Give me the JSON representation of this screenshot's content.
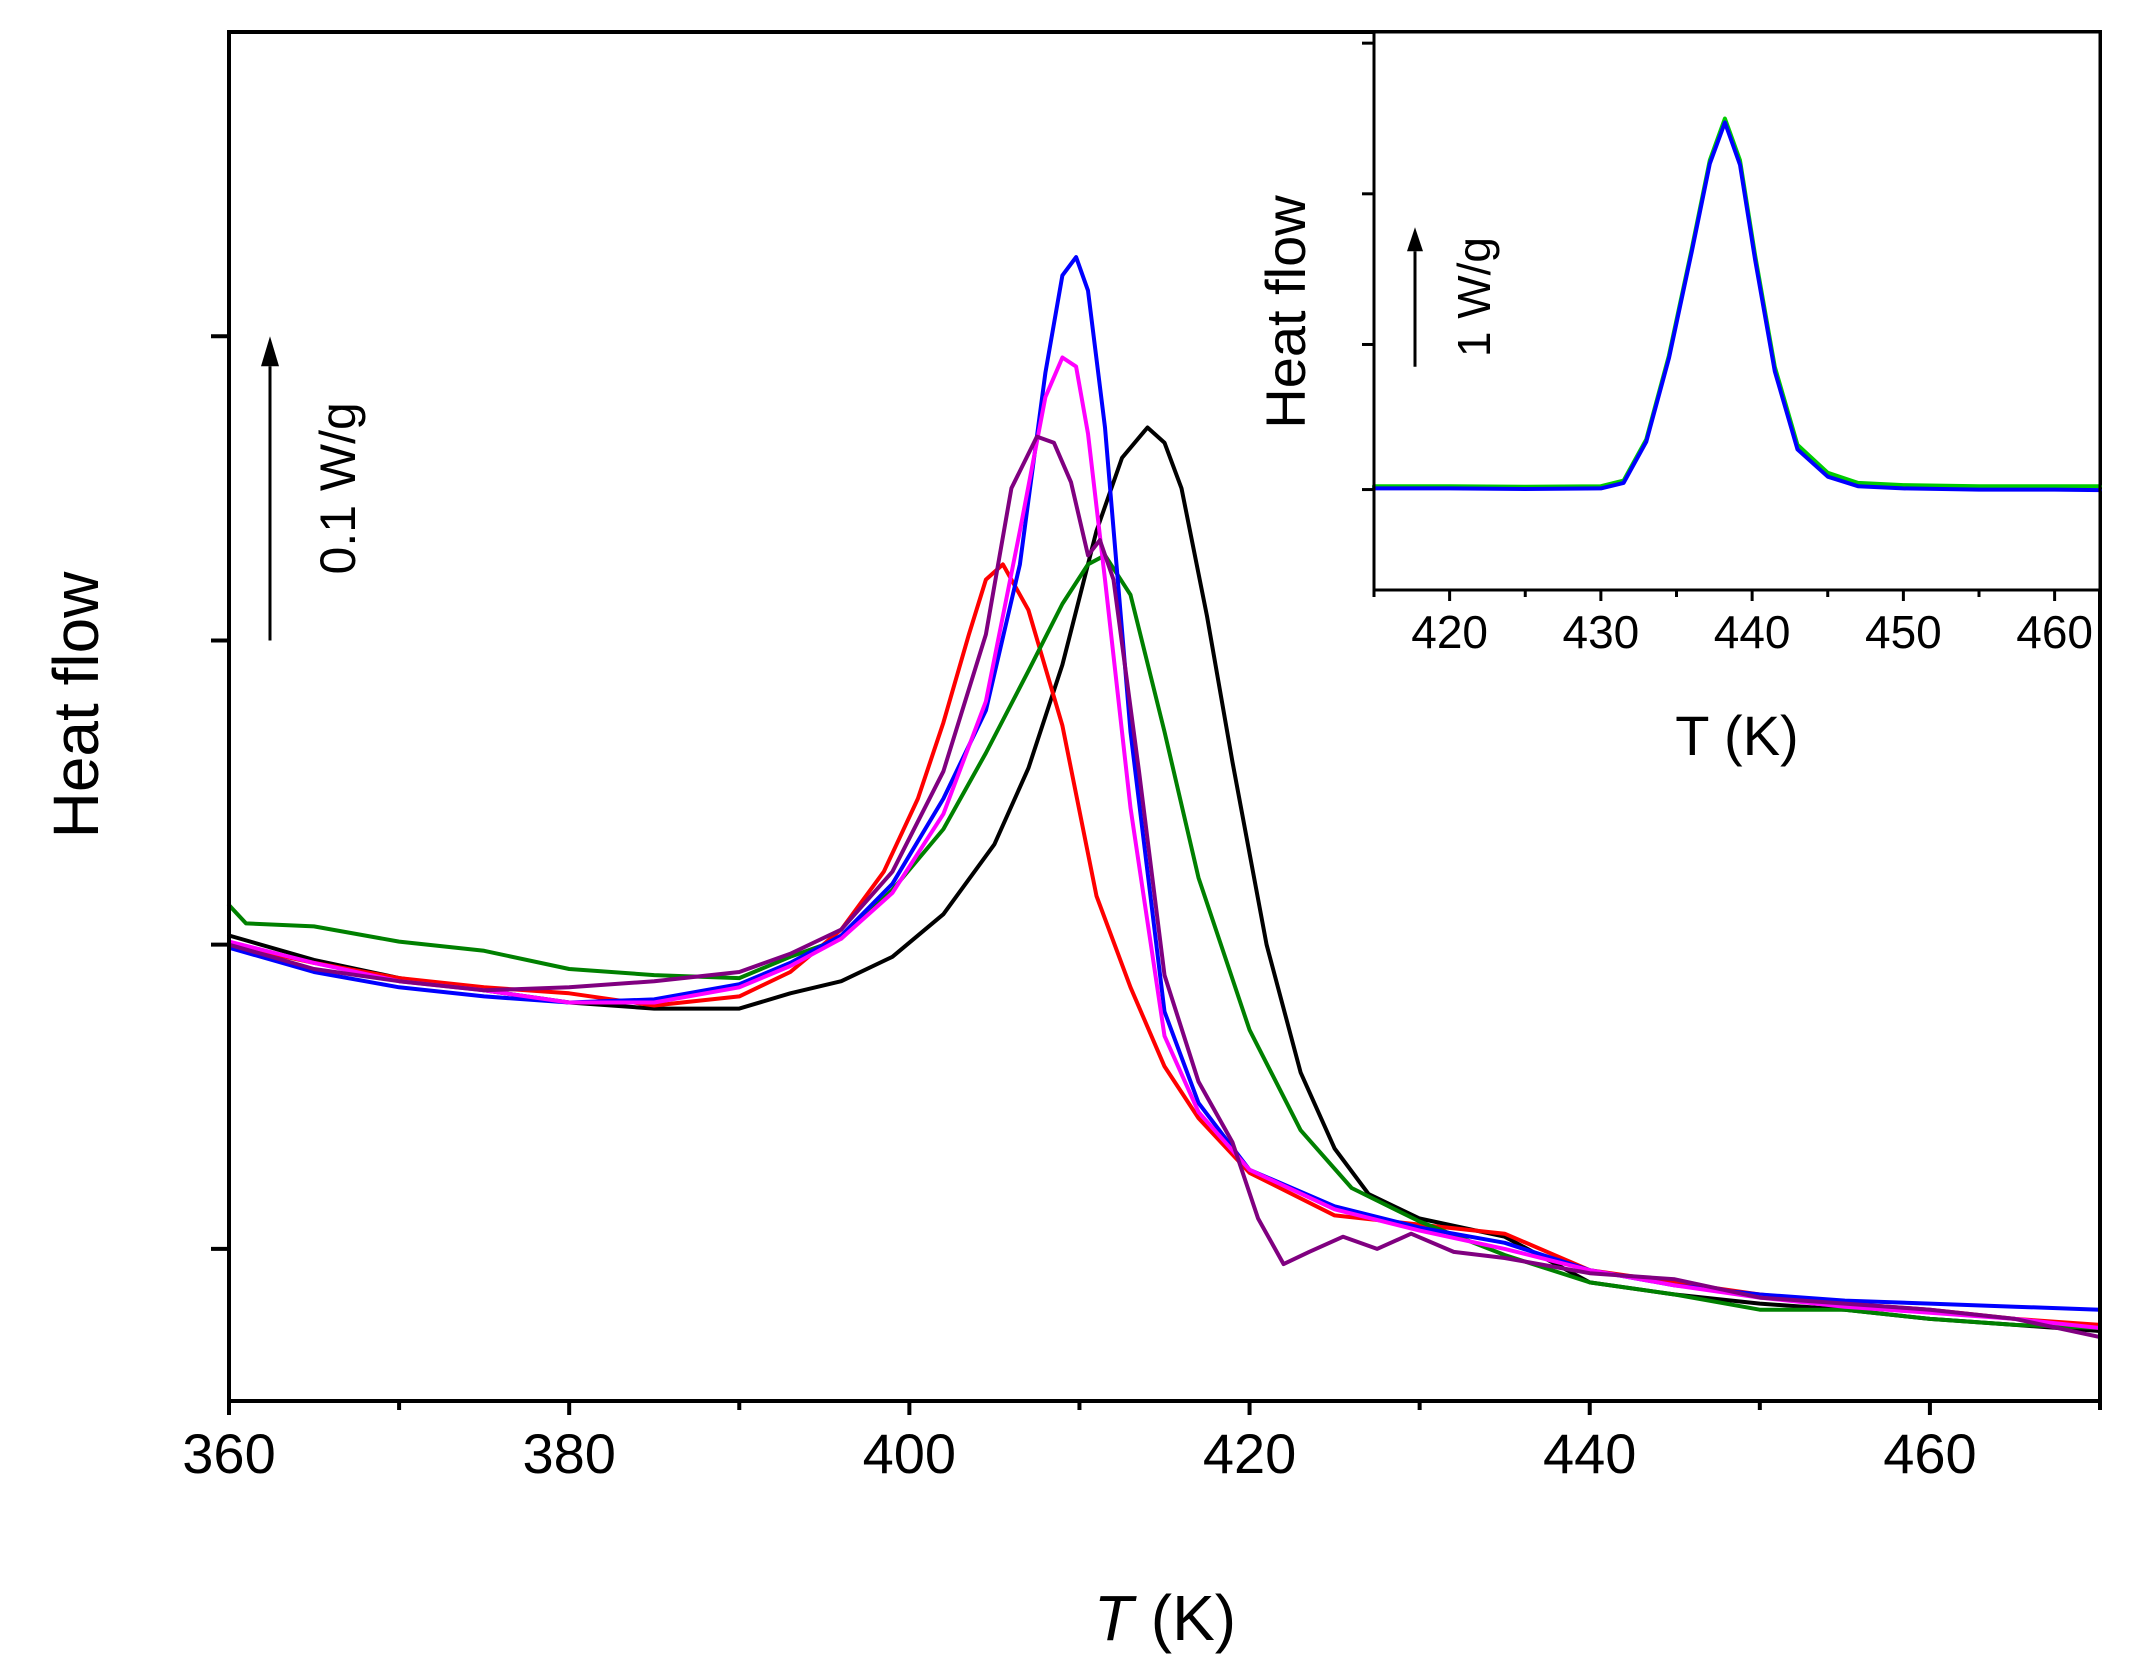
{
  "chart_data": [
    {
      "type": "line",
      "title": "",
      "xlabel_italic": "T",
      "xlabel_unit": "(K)",
      "ylabel": "Heat flow",
      "xlim": [
        360,
        470
      ],
      "ylim": [
        0.0,
        0.45
      ],
      "x_ticks": [
        360,
        380,
        400,
        420,
        440,
        460
      ],
      "x_tick_labels": [
        "360",
        "380",
        "400",
        "420",
        "440",
        "460"
      ],
      "y_ticks": [
        0.05,
        0.15,
        0.25,
        0.35
      ],
      "y_tick_labels_visible": false,
      "scale_bar": {
        "label": "0.1 W/g",
        "from": 0.25,
        "to": 0.35
      },
      "series": [
        {
          "name": "black",
          "color": "#000000",
          "x": [
            360,
            365,
            370,
            375,
            380,
            385,
            390,
            393,
            396,
            399,
            402,
            405,
            407,
            409,
            411,
            412.5,
            414,
            415,
            416,
            417.5,
            419,
            421,
            423,
            425,
            427,
            430,
            435,
            440,
            445,
            450,
            455,
            460,
            465,
            470
          ],
          "y": [
            0.153,
            0.145,
            0.139,
            0.135,
            0.131,
            0.129,
            0.129,
            0.134,
            0.138,
            0.146,
            0.16,
            0.183,
            0.208,
            0.242,
            0.286,
            0.31,
            0.32,
            0.315,
            0.3,
            0.258,
            0.21,
            0.15,
            0.108,
            0.083,
            0.068,
            0.06,
            0.054,
            0.039,
            0.035,
            0.032,
            0.03,
            0.027,
            0.025,
            0.023
          ]
        },
        {
          "name": "red",
          "color": "#ff0000",
          "x": [
            360,
            365,
            370,
            375,
            380,
            385,
            390,
            393,
            396,
            398.5,
            400.5,
            402,
            403.5,
            404.5,
            405.5,
            407,
            409,
            411,
            413,
            415,
            417,
            420,
            425,
            430,
            435,
            440,
            445,
            450,
            455,
            460,
            465,
            470
          ],
          "y": [
            0.15,
            0.144,
            0.139,
            0.136,
            0.134,
            0.13,
            0.133,
            0.141,
            0.155,
            0.174,
            0.198,
            0.223,
            0.252,
            0.27,
            0.275,
            0.26,
            0.222,
            0.166,
            0.136,
            0.11,
            0.093,
            0.075,
            0.061,
            0.058,
            0.055,
            0.043,
            0.039,
            0.035,
            0.032,
            0.03,
            0.027,
            0.025
          ]
        },
        {
          "name": "green",
          "color": "#008000",
          "x": [
            360,
            361,
            365,
            370,
            375,
            380,
            385,
            390,
            393,
            396,
            399,
            402,
            404.5,
            407,
            409,
            410.5,
            411.5,
            413,
            415,
            417,
            420,
            423,
            426,
            430,
            435,
            440,
            445,
            450,
            455,
            460,
            465,
            470
          ],
          "y": [
            0.163,
            0.157,
            0.156,
            0.151,
            0.148,
            0.142,
            0.14,
            0.139,
            0.146,
            0.152,
            0.168,
            0.188,
            0.213,
            0.24,
            0.262,
            0.275,
            0.278,
            0.265,
            0.22,
            0.172,
            0.122,
            0.089,
            0.07,
            0.059,
            0.048,
            0.039,
            0.035,
            0.03,
            0.03,
            0.027,
            0.025,
            0.024
          ]
        },
        {
          "name": "blue",
          "color": "#0000ff",
          "x": [
            360,
            365,
            370,
            375,
            380,
            385,
            390,
            393,
            396,
            399,
            402,
            404.5,
            406.5,
            408,
            409,
            409.8,
            410.5,
            411.5,
            413,
            415,
            417,
            420,
            425,
            430,
            435,
            440,
            445,
            450,
            455,
            460,
            465,
            470
          ],
          "y": [
            0.149,
            0.141,
            0.136,
            0.133,
            0.131,
            0.132,
            0.137,
            0.144,
            0.153,
            0.17,
            0.198,
            0.227,
            0.275,
            0.338,
            0.37,
            0.376,
            0.365,
            0.32,
            0.22,
            0.128,
            0.098,
            0.076,
            0.064,
            0.057,
            0.052,
            0.043,
            0.038,
            0.035,
            0.033,
            0.032,
            0.031,
            0.03
          ]
        },
        {
          "name": "magenta",
          "color": "#ff00ff",
          "x": [
            360,
            365,
            370,
            375,
            380,
            385,
            390,
            393,
            396,
            399,
            402,
            404.5,
            406.5,
            408,
            409,
            409.8,
            410.5,
            411.5,
            413,
            415,
            417,
            420,
            425,
            430,
            435,
            440,
            445,
            450,
            455,
            460,
            465,
            470
          ],
          "y": [
            0.151,
            0.144,
            0.138,
            0.135,
            0.131,
            0.131,
            0.136,
            0.143,
            0.152,
            0.167,
            0.193,
            0.23,
            0.286,
            0.33,
            0.343,
            0.34,
            0.318,
            0.27,
            0.195,
            0.12,
            0.095,
            0.076,
            0.063,
            0.056,
            0.05,
            0.043,
            0.038,
            0.034,
            0.031,
            0.029,
            0.027,
            0.024
          ]
        },
        {
          "name": "purple",
          "color": "#800080",
          "x": [
            360,
            365,
            370,
            375,
            380,
            385,
            390,
            393,
            396,
            399,
            402,
            404.5,
            406,
            407.5,
            408.5,
            409.5,
            410.5,
            411.2,
            412,
            413.5,
            415,
            417,
            419,
            420.5,
            422,
            423.5,
            425.5,
            427.5,
            429.5,
            432,
            435,
            440,
            445,
            450,
            455,
            460,
            465,
            470
          ],
          "y": [
            0.15,
            0.142,
            0.138,
            0.135,
            0.136,
            0.138,
            0.141,
            0.147,
            0.155,
            0.174,
            0.207,
            0.252,
            0.3,
            0.317,
            0.315,
            0.302,
            0.278,
            0.283,
            0.27,
            0.207,
            0.14,
            0.105,
            0.085,
            0.06,
            0.045,
            0.049,
            0.054,
            0.05,
            0.055,
            0.049,
            0.047,
            0.042,
            0.04,
            0.034,
            0.032,
            0.03,
            0.027,
            0.021
          ]
        }
      ]
    },
    {
      "type": "line",
      "title": "",
      "xlabel": "T (K)",
      "ylabel": "Heat flow",
      "xlim": [
        415,
        463
      ],
      "ylim": [
        0.0,
        1.0
      ],
      "x_ticks": [
        420,
        430,
        440,
        450,
        460
      ],
      "x_tick_labels": [
        "420",
        "430",
        "440",
        "450",
        "460"
      ],
      "y_ticks": [
        0.18,
        0.44,
        0.71,
        0.98
      ],
      "y_tick_labels_visible": false,
      "scale_bar": {
        "label": "1 W/g",
        "from": 0.4,
        "to": 0.65
      },
      "series": [
        {
          "name": "green",
          "color": "#00cc00",
          "x": [
            415,
            420,
            425,
            430,
            431.5,
            433,
            434.5,
            436,
            437.2,
            438.2,
            439.2,
            440.2,
            441.5,
            443,
            445,
            447,
            450,
            455,
            460,
            463
          ],
          "y": [
            0.186,
            0.186,
            0.185,
            0.186,
            0.196,
            0.27,
            0.42,
            0.61,
            0.77,
            0.845,
            0.77,
            0.6,
            0.4,
            0.26,
            0.21,
            0.192,
            0.188,
            0.186,
            0.186,
            0.186
          ]
        },
        {
          "name": "blue",
          "color": "#0000ff",
          "x": [
            415,
            420,
            425,
            430,
            431.5,
            433,
            434.5,
            436,
            437.2,
            438.2,
            439.2,
            440.2,
            441.5,
            443,
            445,
            447,
            450,
            455,
            460,
            463
          ],
          "y": [
            0.182,
            0.182,
            0.181,
            0.182,
            0.192,
            0.266,
            0.415,
            0.605,
            0.764,
            0.838,
            0.762,
            0.592,
            0.392,
            0.252,
            0.203,
            0.186,
            0.182,
            0.18,
            0.18,
            0.179
          ]
        }
      ]
    }
  ]
}
